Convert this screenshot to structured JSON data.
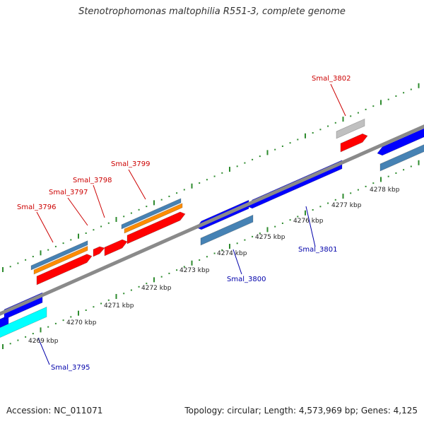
{
  "title": "Stenotrophomonas maltophilia R551-3, complete genome",
  "footer": {
    "accession": "Accession: NC_011071",
    "summary": "Topology: circular; Length: 4,573,969 bp; Genes: 4,125"
  },
  "colors": {
    "backbone": "#8a8a8a",
    "ticks": "#2e8b2e",
    "gene_forward": "#ff0000",
    "gene_reverse": "#0000ff",
    "gene_steel": "#4682b4",
    "gene_orange": "#ff8c00",
    "gene_cyan": "#00ffff",
    "gene_grey": "#c0c0c0",
    "label_red": "#cc0000",
    "label_blue": "#0000aa"
  },
  "scale_labels": [
    "4269 kbp",
    "4270 kbp",
    "4271 kbp",
    "4272 kbp",
    "4273 kbp",
    "4274 kbp",
    "4275 kbp",
    "4276 kbp",
    "4277 kbp",
    "4278 kbp"
  ],
  "gene_labels": [
    {
      "name": "Smal_3795",
      "color": "blue"
    },
    {
      "name": "Smal_3796",
      "color": "red"
    },
    {
      "name": "Smal_3797",
      "color": "red"
    },
    {
      "name": "Smal_3798",
      "color": "red"
    },
    {
      "name": "Smal_3799",
      "color": "red"
    },
    {
      "name": "Smal_3800",
      "color": "blue"
    },
    {
      "name": "Smal_3801",
      "color": "blue"
    },
    {
      "name": "Smal_3802",
      "color": "red"
    }
  ]
}
